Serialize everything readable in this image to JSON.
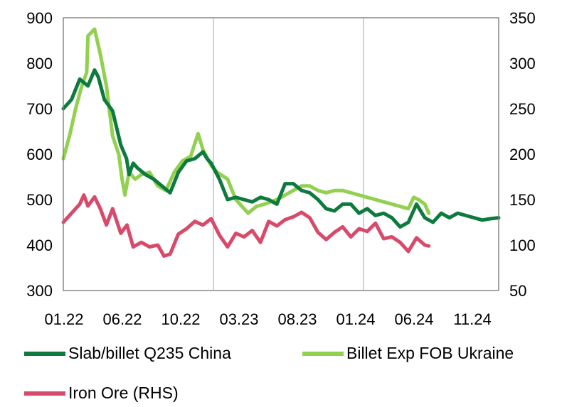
{
  "chart_data": {
    "type": "line",
    "title": "",
    "xlabel": "",
    "ylabel": "",
    "x_ticks": [
      "01.22",
      "06.22",
      "10.22",
      "03.23",
      "08.23",
      "01.24",
      "06.24",
      "11.24"
    ],
    "y_left": {
      "min": 300,
      "max": 900,
      "ticks": [
        "300",
        "400",
        "500",
        "600",
        "700",
        "800",
        "900"
      ]
    },
    "y_right": {
      "min": 50,
      "max": 350,
      "ticks": [
        "50",
        "100",
        "150",
        "200",
        "250",
        "300",
        "350"
      ]
    },
    "grid": "vertical at 10.22 and 08.23 / 01.24",
    "legend_position": "bottom",
    "series": [
      {
        "name": "Slab/billet Q235 China",
        "axis": "left",
        "color": "#0E7A3E",
        "x": [
          0,
          2,
          4,
          6,
          7.6,
          8.5,
          10,
          12,
          14,
          15.4,
          16,
          17,
          18,
          20,
          22,
          24,
          26,
          28,
          30,
          32,
          34,
          35,
          36,
          38,
          40,
          42,
          44,
          46,
          48,
          50,
          52,
          54,
          56,
          58,
          60,
          62,
          64,
          66,
          68,
          70,
          72,
          74,
          76,
          78,
          80,
          82,
          84,
          86,
          88,
          90,
          92,
          94,
          96,
          98,
          100,
          102,
          104,
          106
        ],
        "y": [
          700,
          720,
          765,
          750,
          785,
          770,
          720,
          695,
          620,
          590,
          555,
          580,
          570,
          555,
          545,
          530,
          515,
          560,
          585,
          590,
          605,
          590,
          580,
          545,
          500,
          505,
          500,
          495,
          505,
          500,
          490,
          535,
          535,
          520,
          515,
          500,
          480,
          475,
          490,
          490,
          470,
          480,
          465,
          470,
          460,
          440,
          450,
          490,
          460,
          450,
          470,
          460,
          470,
          465,
          460,
          455,
          458,
          460
        ]
      },
      {
        "name": "Billet Exp FOB Ukraine",
        "axis": "left",
        "color": "#92D050",
        "x": [
          0,
          1.5,
          3,
          4.5,
          5.7,
          6,
          7.6,
          9,
          10.5,
          12,
          13.5,
          14.3,
          15,
          16,
          17.5,
          19,
          21,
          23,
          25,
          27,
          29,
          31,
          32.8,
          34,
          36,
          37.5,
          40,
          42,
          45,
          47,
          49,
          50.5,
          52,
          54,
          56,
          58,
          60,
          62,
          64,
          66,
          68,
          70,
          72,
          74,
          76,
          78,
          80,
          82,
          84,
          85.3,
          86.5,
          88,
          89
        ],
        "y": [
          590,
          640,
          700,
          750,
          780,
          860,
          875,
          820,
          750,
          640,
          600,
          545,
          510,
          560,
          545,
          555,
          560,
          530,
          520,
          560,
          585,
          595,
          645,
          610,
          575,
          560,
          545,
          500,
          470,
          485,
          490,
          495,
          500,
          510,
          520,
          530,
          530,
          520,
          515,
          520,
          520,
          515,
          510,
          505,
          500,
          495,
          490,
          485,
          480,
          505,
          500,
          490,
          470
        ]
      },
      {
        "name": "Iron Ore (RHS)",
        "axis": "right",
        "color": "#D84A6A",
        "x": [
          0,
          2,
          4,
          5,
          6,
          7.6,
          9,
          10.5,
          12,
          14,
          15.5,
          17,
          19,
          21,
          23,
          24.5,
          26,
          28,
          30,
          32,
          34,
          36,
          38,
          40,
          42,
          44,
          46,
          48,
          50,
          52,
          54,
          56,
          58,
          60,
          62,
          64,
          66,
          68,
          70,
          72,
          74,
          76,
          78,
          80,
          82,
          84,
          86,
          88,
          89
        ],
        "y": [
          125,
          135,
          145,
          155,
          143,
          153,
          140,
          122,
          140,
          113,
          122,
          98,
          103,
          98,
          100,
          88,
          90,
          112,
          118,
          126,
          122,
          129,
          111,
          98,
          113,
          109,
          116,
          103,
          126,
          121,
          128,
          131,
          136,
          130,
          114,
          106,
          114,
          120,
          109,
          118,
          115,
          124,
          107,
          109,
          103,
          93,
          108,
          100,
          99
        ]
      }
    ]
  }
}
